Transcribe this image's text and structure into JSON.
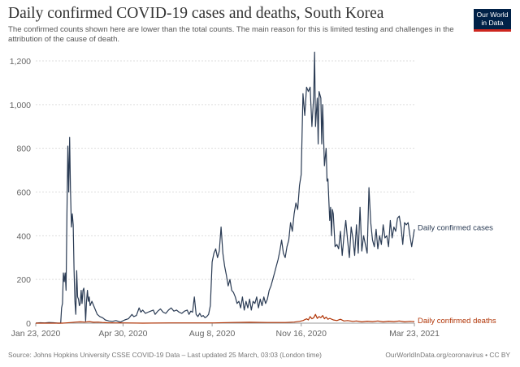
{
  "header": {
    "title": "Daily confirmed COVID-19 cases and deaths, South Korea",
    "subtitle": "The confirmed counts shown here are lower than the total counts. The main reason for this is limited testing and challenges in the attribution of the cause of death.",
    "logo_line1": "Our World",
    "logo_line2": "in Data"
  },
  "footer": {
    "source": "Source: Johns Hopkins University CSSE COVID-19 Data – Last updated 25 March, 03:03 (London time)",
    "credit": "OurWorldInData.org/coronavirus • CC BY"
  },
  "colors": {
    "cases": "#2a3b54",
    "deaths": "#b13507",
    "grid": "#ddd",
    "logo_bg": "#002147",
    "logo_stripe": "#ce261e"
  },
  "chart_data": {
    "type": "line",
    "title": "Daily confirmed COVID-19 cases and deaths, South Korea",
    "xlabel": "",
    "ylabel": "",
    "x_domain_days": [
      0,
      425
    ],
    "x_start_date": "Jan 23, 2020",
    "ylim": [
      0,
      1200
    ],
    "grid": true,
    "yticks": [
      0,
      200,
      400,
      600,
      800,
      1000,
      1200
    ],
    "ytick_labels": [
      "0",
      "200",
      "400",
      "600",
      "800",
      "1,000",
      "1,200"
    ],
    "xticks_days": [
      0,
      98,
      198,
      298,
      425
    ],
    "xtick_labels": [
      "Jan 23, 2020",
      "Apr 30, 2020",
      "Aug 8, 2020",
      "Nov 16, 2020",
      "Mar 23, 2021"
    ],
    "legend": "inline-right",
    "series": [
      {
        "name": "Daily confirmed cases",
        "label": "Daily confirmed cases",
        "points": [
          [
            0,
            0
          ],
          [
            5,
            2
          ],
          [
            10,
            1
          ],
          [
            15,
            3
          ],
          [
            20,
            2
          ],
          [
            25,
            0
          ],
          [
            28,
            0
          ],
          [
            29,
            70
          ],
          [
            30,
            90
          ],
          [
            31,
            230
          ],
          [
            32,
            190
          ],
          [
            33,
            230
          ],
          [
            34,
            150
          ],
          [
            35,
            500
          ],
          [
            36,
            810
          ],
          [
            37,
            600
          ],
          [
            38,
            850
          ],
          [
            39,
            600
          ],
          [
            40,
            440
          ],
          [
            41,
            500
          ],
          [
            42,
            450
          ],
          [
            43,
            250
          ],
          [
            44,
            100
          ],
          [
            45,
            40
          ],
          [
            46,
            240
          ],
          [
            47,
            120
          ],
          [
            48,
            110
          ],
          [
            49,
            80
          ],
          [
            50,
            90
          ],
          [
            51,
            150
          ],
          [
            52,
            90
          ],
          [
            53,
            150
          ],
          [
            54,
            160
          ],
          [
            55,
            110
          ],
          [
            56,
            10
          ],
          [
            57,
            100
          ],
          [
            58,
            150
          ],
          [
            59,
            100
          ],
          [
            60,
            120
          ],
          [
            61,
            80
          ],
          [
            63,
            100
          ],
          [
            65,
            80
          ],
          [
            67,
            60
          ],
          [
            69,
            40
          ],
          [
            72,
            30
          ],
          [
            75,
            25
          ],
          [
            78,
            15
          ],
          [
            82,
            10
          ],
          [
            86,
            8
          ],
          [
            90,
            12
          ],
          [
            95,
            5
          ],
          [
            100,
            15
          ],
          [
            104,
            20
          ],
          [
            108,
            40
          ],
          [
            110,
            30
          ],
          [
            113,
            35
          ],
          [
            116,
            70
          ],
          [
            118,
            50
          ],
          [
            120,
            60
          ],
          [
            123,
            45
          ],
          [
            126,
            50
          ],
          [
            129,
            55
          ],
          [
            132,
            60
          ],
          [
            134,
            40
          ],
          [
            137,
            55
          ],
          [
            140,
            65
          ],
          [
            143,
            50
          ],
          [
            146,
            45
          ],
          [
            149,
            60
          ],
          [
            152,
            70
          ],
          [
            155,
            55
          ],
          [
            158,
            60
          ],
          [
            161,
            50
          ],
          [
            164,
            45
          ],
          [
            167,
            55
          ],
          [
            170,
            60
          ],
          [
            172,
            40
          ],
          [
            174,
            55
          ],
          [
            176,
            50
          ],
          [
            178,
            120
          ],
          [
            180,
            40
          ],
          [
            182,
            30
          ],
          [
            184,
            45
          ],
          [
            186,
            30
          ],
          [
            188,
            35
          ],
          [
            190,
            25
          ],
          [
            192,
            30
          ],
          [
            194,
            40
          ],
          [
            196,
            80
          ],
          [
            198,
            280
          ],
          [
            200,
            320
          ],
          [
            202,
            340
          ],
          [
            204,
            300
          ],
          [
            206,
            330
          ],
          [
            208,
            440
          ],
          [
            210,
            320
          ],
          [
            212,
            260
          ],
          [
            214,
            220
          ],
          [
            216,
            170
          ],
          [
            218,
            200
          ],
          [
            220,
            150
          ],
          [
            222,
            140
          ],
          [
            224,
            120
          ],
          [
            226,
            90
          ],
          [
            228,
            100
          ],
          [
            230,
            70
          ],
          [
            232,
            120
          ],
          [
            234,
            60
          ],
          [
            236,
            100
          ],
          [
            238,
            70
          ],
          [
            240,
            110
          ],
          [
            242,
            60
          ],
          [
            244,
            100
          ],
          [
            246,
            90
          ],
          [
            248,
            120
          ],
          [
            250,
            70
          ],
          [
            252,
            110
          ],
          [
            254,
            80
          ],
          [
            256,
            120
          ],
          [
            258,
            90
          ],
          [
            260,
            110
          ],
          [
            262,
            150
          ],
          [
            264,
            170
          ],
          [
            266,
            200
          ],
          [
            268,
            230
          ],
          [
            270,
            260
          ],
          [
            272,
            290
          ],
          [
            274,
            330
          ],
          [
            276,
            380
          ],
          [
            278,
            320
          ],
          [
            280,
            300
          ],
          [
            282,
            350
          ],
          [
            284,
            380
          ],
          [
            286,
            460
          ],
          [
            288,
            420
          ],
          [
            290,
            500
          ],
          [
            292,
            550
          ],
          [
            294,
            520
          ],
          [
            296,
            630
          ],
          [
            298,
            680
          ],
          [
            300,
            1050
          ],
          [
            302,
            950
          ],
          [
            304,
            1080
          ],
          [
            306,
            1060
          ],
          [
            308,
            1080
          ],
          [
            310,
            900
          ],
          [
            312,
            1040
          ],
          [
            313,
            1240
          ],
          [
            314,
            900
          ],
          [
            316,
            1030
          ],
          [
            317,
            820
          ],
          [
            318,
            1060
          ],
          [
            320,
            1030
          ],
          [
            321,
            820
          ],
          [
            322,
            1000
          ],
          [
            324,
            720
          ],
          [
            326,
            800
          ],
          [
            327,
            650
          ],
          [
            328,
            660
          ],
          [
            330,
            470
          ],
          [
            331,
            530
          ],
          [
            332,
            400
          ],
          [
            333,
            520
          ],
          [
            334,
            500
          ],
          [
            336,
            350
          ],
          [
            338,
            360
          ],
          [
            340,
            340
          ],
          [
            342,
            420
          ],
          [
            344,
            310
          ],
          [
            346,
            400
          ],
          [
            348,
            470
          ],
          [
            350,
            380
          ],
          [
            352,
            300
          ],
          [
            354,
            440
          ],
          [
            356,
            390
          ],
          [
            358,
            310
          ],
          [
            360,
            450
          ],
          [
            362,
            320
          ],
          [
            364,
            530
          ],
          [
            366,
            330
          ],
          [
            368,
            400
          ],
          [
            370,
            360
          ],
          [
            372,
            320
          ],
          [
            374,
            620
          ],
          [
            376,
            460
          ],
          [
            378,
            380
          ],
          [
            380,
            350
          ],
          [
            382,
            430
          ],
          [
            384,
            340
          ],
          [
            386,
            400
          ],
          [
            388,
            360
          ],
          [
            390,
            450
          ],
          [
            392,
            390
          ],
          [
            394,
            400
          ],
          [
            396,
            350
          ],
          [
            398,
            470
          ],
          [
            400,
            390
          ],
          [
            402,
            440
          ],
          [
            404,
            420
          ],
          [
            406,
            480
          ],
          [
            408,
            490
          ],
          [
            410,
            440
          ],
          [
            412,
            360
          ],
          [
            414,
            460
          ],
          [
            416,
            450
          ],
          [
            418,
            460
          ],
          [
            420,
            400
          ],
          [
            422,
            350
          ],
          [
            425,
            430
          ]
        ]
      },
      {
        "name": "Daily confirmed deaths",
        "label": "Daily confirmed deaths",
        "points": [
          [
            0,
            0
          ],
          [
            30,
            0
          ],
          [
            34,
            1
          ],
          [
            40,
            3
          ],
          [
            45,
            5
          ],
          [
            50,
            6
          ],
          [
            55,
            5
          ],
          [
            60,
            7
          ],
          [
            65,
            4
          ],
          [
            70,
            5
          ],
          [
            75,
            3
          ],
          [
            80,
            2
          ],
          [
            90,
            1
          ],
          [
            100,
            1
          ],
          [
            120,
            0
          ],
          [
            150,
            1
          ],
          [
            180,
            1
          ],
          [
            200,
            1
          ],
          [
            220,
            3
          ],
          [
            240,
            4
          ],
          [
            260,
            3
          ],
          [
            280,
            3
          ],
          [
            290,
            5
          ],
          [
            296,
            8
          ],
          [
            300,
            12
          ],
          [
            304,
            20
          ],
          [
            306,
            15
          ],
          [
            308,
            30
          ],
          [
            310,
            20
          ],
          [
            312,
            25
          ],
          [
            314,
            40
          ],
          [
            316,
            22
          ],
          [
            318,
            30
          ],
          [
            320,
            25
          ],
          [
            322,
            35
          ],
          [
            324,
            20
          ],
          [
            326,
            28
          ],
          [
            328,
            18
          ],
          [
            330,
            22
          ],
          [
            334,
            15
          ],
          [
            338,
            12
          ],
          [
            342,
            18
          ],
          [
            346,
            10
          ],
          [
            350,
            12
          ],
          [
            356,
            8
          ],
          [
            360,
            10
          ],
          [
            366,
            6
          ],
          [
            372,
            9
          ],
          [
            378,
            7
          ],
          [
            384,
            10
          ],
          [
            390,
            6
          ],
          [
            396,
            9
          ],
          [
            402,
            7
          ],
          [
            408,
            10
          ],
          [
            414,
            6
          ],
          [
            420,
            8
          ],
          [
            425,
            7
          ]
        ]
      }
    ]
  }
}
